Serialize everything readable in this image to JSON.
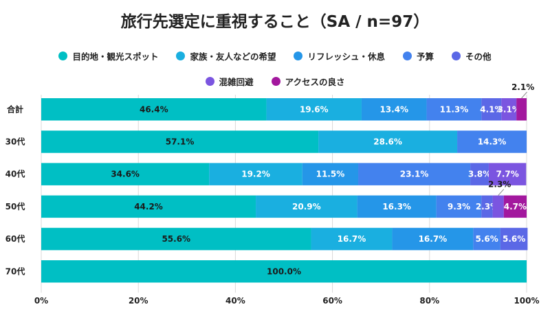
{
  "chart_data": {
    "type": "bar",
    "orientation": "horizontal",
    "stacked": true,
    "title": "旅行先選定に重視すること（SA / n=97）",
    "categories": [
      "合計",
      "30代",
      "40代",
      "50代",
      "60代",
      "70代"
    ],
    "series": [
      {
        "name": "目的地・観光スポット",
        "color": "#00BFC4",
        "values": [
          46.4,
          57.1,
          34.6,
          44.2,
          55.6,
          100.0
        ],
        "labels": [
          "46.4%",
          "57.1%",
          "34.6%",
          "44.2%",
          "55.6%",
          "100.0%"
        ]
      },
      {
        "name": "家族・友人などの希望",
        "color": "#1AAFE0",
        "values": [
          19.6,
          28.6,
          19.2,
          20.9,
          16.7,
          0
        ],
        "labels": [
          "19.6%",
          "28.6%",
          "19.2%",
          "20.9%",
          "16.7%",
          ""
        ]
      },
      {
        "name": "リフレッシュ・休息",
        "color": "#2596E8",
        "values": [
          13.4,
          0,
          11.5,
          16.3,
          16.7,
          0
        ],
        "labels": [
          "13.4%",
          "",
          "11.5%",
          "16.3%",
          "16.7%",
          ""
        ]
      },
      {
        "name": "予算",
        "color": "#4382EE",
        "values": [
          11.3,
          14.3,
          23.1,
          9.3,
          5.6,
          0
        ],
        "labels": [
          "11.3%",
          "14.3%",
          "23.1%",
          "9.3%",
          "5.6%",
          ""
        ]
      },
      {
        "name": "その他",
        "color": "#5B68E6",
        "values": [
          4.1,
          0,
          3.8,
          2.3,
          5.6,
          0
        ],
        "labels": [
          "4.1%",
          "",
          "3.8%",
          "2.3%",
          "5.6%",
          ""
        ]
      },
      {
        "name": "混雑回避",
        "color": "#7B55E0",
        "values": [
          3.1,
          0,
          7.7,
          2.3,
          0,
          0
        ],
        "labels": [
          "3.1%",
          "",
          "7.7%",
          "",
          "",
          ""
        ]
      },
      {
        "name": "アクセスの良さ",
        "color": "#A3189E",
        "values": [
          2.1,
          0,
          0,
          4.7,
          0,
          0
        ],
        "labels": [
          "",
          "",
          "",
          "4.7%",
          "",
          ""
        ]
      }
    ],
    "callouts": [
      {
        "category": "合計",
        "series": "アクセスの良さ",
        "label": "2.1%"
      },
      {
        "category": "50代",
        "series": "混雑回避",
        "label": "2.3%"
      }
    ],
    "xlim": [
      0,
      100
    ],
    "xticks": [
      "0%",
      "20%",
      "40%",
      "60%",
      "80%",
      "100%"
    ],
    "grid": true,
    "legend_position": "top"
  }
}
